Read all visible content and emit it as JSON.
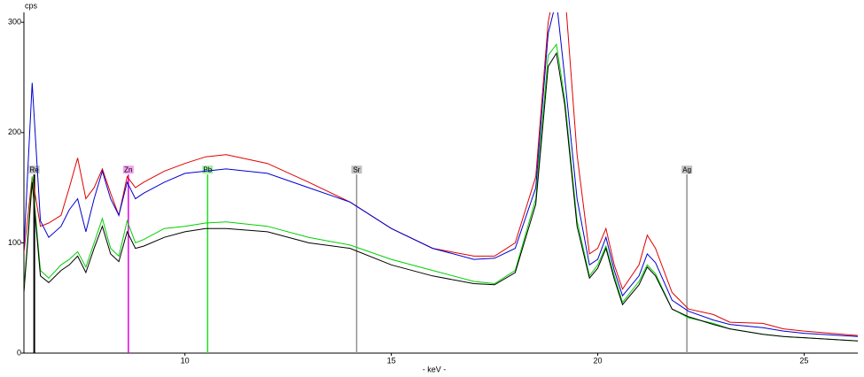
{
  "chart_data": {
    "type": "line",
    "ylabel": "cps",
    "xlabel": "- keV -",
    "xlim": [
      6.1,
      26.3
    ],
    "ylim": [
      0,
      309
    ],
    "xticks": [
      10,
      15,
      20,
      25
    ],
    "yticks": [
      0,
      100,
      200,
      300
    ],
    "grid": false,
    "x": [
      6.1,
      6.3,
      6.5,
      6.7,
      7.0,
      7.2,
      7.4,
      7.6,
      7.8,
      8.0,
      8.2,
      8.4,
      8.6,
      8.8,
      9.0,
      9.5,
      10,
      10.5,
      11,
      12,
      13,
      14,
      15,
      16,
      17,
      17.5,
      18,
      18.5,
      18.8,
      19.0,
      19.2,
      19.5,
      19.8,
      20.0,
      20.2,
      20.4,
      20.6,
      21.0,
      21.2,
      21.4,
      21.8,
      22.2,
      22.8,
      23.2,
      24,
      24.5,
      25,
      26.3
    ],
    "series": [
      {
        "color": "#e00000",
        "values": [
          91,
          160,
          115,
          118,
          125,
          150,
          177,
          140,
          150,
          167,
          145,
          125,
          160,
          150,
          155,
          165,
          172,
          178,
          180,
          172,
          155,
          137,
          113,
          95,
          88,
          88,
          100,
          160,
          300,
          340,
          330,
          180,
          90,
          95,
          113,
          80,
          58,
          80,
          107,
          95,
          55,
          40,
          35,
          28,
          27,
          22,
          20,
          16
        ]
      },
      {
        "color": "#0000d0",
        "values": [
          95,
          245,
          120,
          105,
          115,
          130,
          140,
          110,
          140,
          165,
          140,
          125,
          155,
          140,
          145,
          155,
          163,
          165,
          167,
          163,
          150,
          137,
          113,
          95,
          85,
          86,
          95,
          150,
          290,
          320,
          250,
          140,
          80,
          85,
          105,
          75,
          52,
          70,
          90,
          82,
          48,
          38,
          30,
          26,
          23,
          20,
          18,
          15
        ]
      },
      {
        "color": "#00d000",
        "values": [
          58,
          160,
          75,
          68,
          80,
          85,
          92,
          78,
          100,
          122,
          95,
          88,
          120,
          100,
          103,
          113,
          115,
          118,
          119,
          115,
          105,
          98,
          85,
          75,
          65,
          63,
          75,
          140,
          270,
          280,
          230,
          120,
          70,
          80,
          97,
          70,
          46,
          65,
          80,
          72,
          40,
          32,
          27,
          22,
          17,
          15,
          14,
          11
        ]
      },
      {
        "color": "#000000",
        "values": [
          55,
          155,
          70,
          64,
          75,
          80,
          88,
          73,
          95,
          115,
          90,
          83,
          110,
          95,
          97,
          105,
          110,
          113,
          113,
          110,
          100,
          95,
          80,
          70,
          63,
          62,
          73,
          135,
          260,
          272,
          225,
          115,
          68,
          77,
          95,
          67,
          44,
          62,
          78,
          70,
          40,
          33,
          26,
          22,
          17,
          15,
          14,
          11
        ]
      }
    ],
    "element_markers": [
      {
        "label": "Re",
        "x": 6.35,
        "color": "#000000",
        "tag_color": "#c0c0c0"
      },
      {
        "label": "Zn",
        "x": 8.63,
        "color": "#e000e0",
        "tag_color": "#f0a0f0"
      },
      {
        "label": "Pb",
        "x": 10.55,
        "color": "#20e020",
        "tag_color": "#a0f0a0"
      },
      {
        "label": "Sr",
        "x": 14.16,
        "color": "#909090",
        "tag_color": "#c0c0c0"
      },
      {
        "label": "Ag",
        "x": 22.16,
        "color": "#909090",
        "tag_color": "#c0c0c0"
      }
    ],
    "marker_level": 162
  }
}
